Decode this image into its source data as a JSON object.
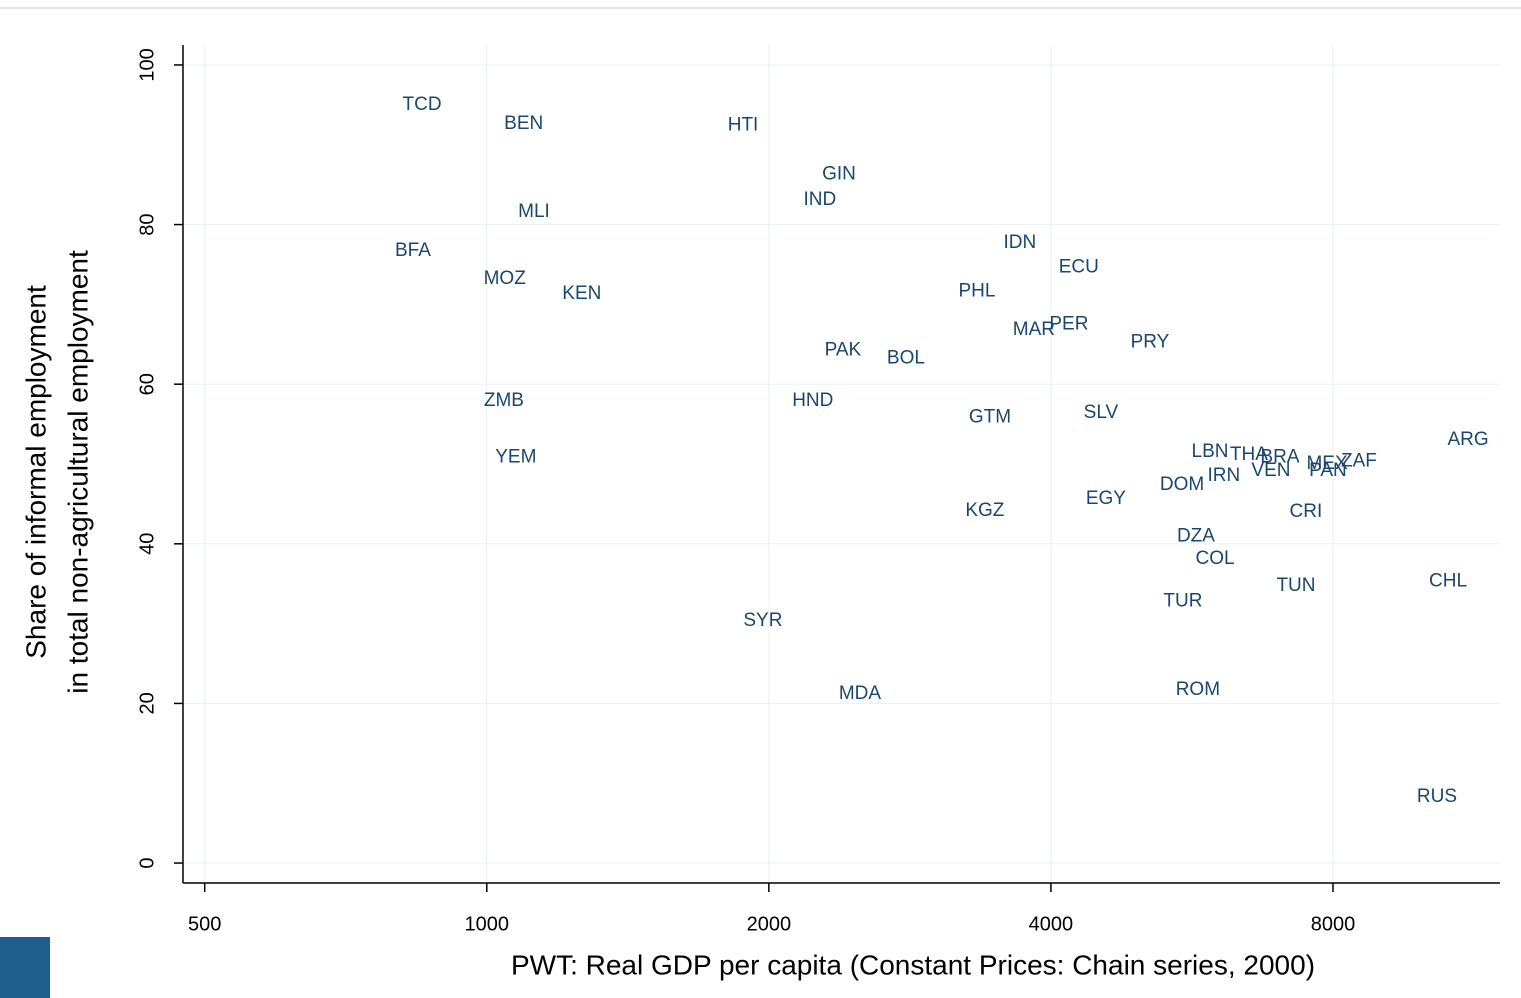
{
  "chart_data": {
    "type": "scatter",
    "xlabel": "PWT: Real GDP per capita (Constant Prices: Chain series, 2000)",
    "ylabel": [
      "Share of informal employment",
      "in total non-agricultural employment"
    ],
    "xlog": true,
    "grid": true,
    "color": "#1a476f",
    "xlim": [
      474,
      12060
    ],
    "ylim": [
      -2.5,
      102.5
    ],
    "xticks": [
      500,
      1000,
      2000,
      4000,
      8000
    ],
    "yticks": [
      0,
      20,
      40,
      60,
      80,
      100
    ],
    "labels": [
      "TCD",
      "BEN",
      "HTI",
      "GIN",
      "IND",
      "MLI",
      "BFA",
      "MOZ",
      "KEN",
      "IDN",
      "ECU",
      "PHL",
      "MAR",
      "PER",
      "PRY",
      "PAK",
      "BOL",
      "ZMB",
      "HND",
      "GTM",
      "SLV",
      "YEM",
      "ARG",
      "LBN",
      "THA",
      "BRA",
      "VEN",
      "IRN",
      "MEX",
      "PAN",
      "ZAF",
      "DOM",
      "EGY",
      "KGZ",
      "CRI",
      "DZA",
      "COL",
      "CHL",
      "TUN",
      "TUR",
      "SYR",
      "ROM",
      "MDA",
      "RUS"
    ],
    "x": [
      853,
      1095,
      1877,
      2376,
      2267,
      1123,
      834,
      1045,
      1263,
      3706,
      4284,
      3335,
      3836,
      4181,
      5102,
      2399,
      2801,
      1043,
      2228,
      3444,
      4523,
      1074,
      11150,
      5914,
      6507,
      7023,
      6869,
      6119,
      7885,
      7902,
      8527,
      5521,
      4579,
      3401,
      7485,
      5713,
      5987,
      10615,
      7305,
      5533,
      1971,
      5740,
      2502,
      10330
    ],
    "y": [
      95.0,
      92.6,
      92.4,
      86.3,
      83.1,
      81.6,
      76.7,
      73.2,
      71.3,
      77.7,
      74.6,
      71.6,
      66.8,
      67.5,
      65.2,
      64.2,
      63.2,
      57.9,
      57.9,
      55.8,
      56.4,
      50.8,
      53.0,
      51.5,
      51.1,
      50.8,
      49.1,
      48.5,
      50.0,
      49.1,
      50.3,
      47.4,
      45.6,
      44.1,
      44.0,
      40.9,
      38.1,
      35.3,
      34.7,
      32.8,
      30.3,
      21.7,
      21.2,
      8.3
    ]
  }
}
